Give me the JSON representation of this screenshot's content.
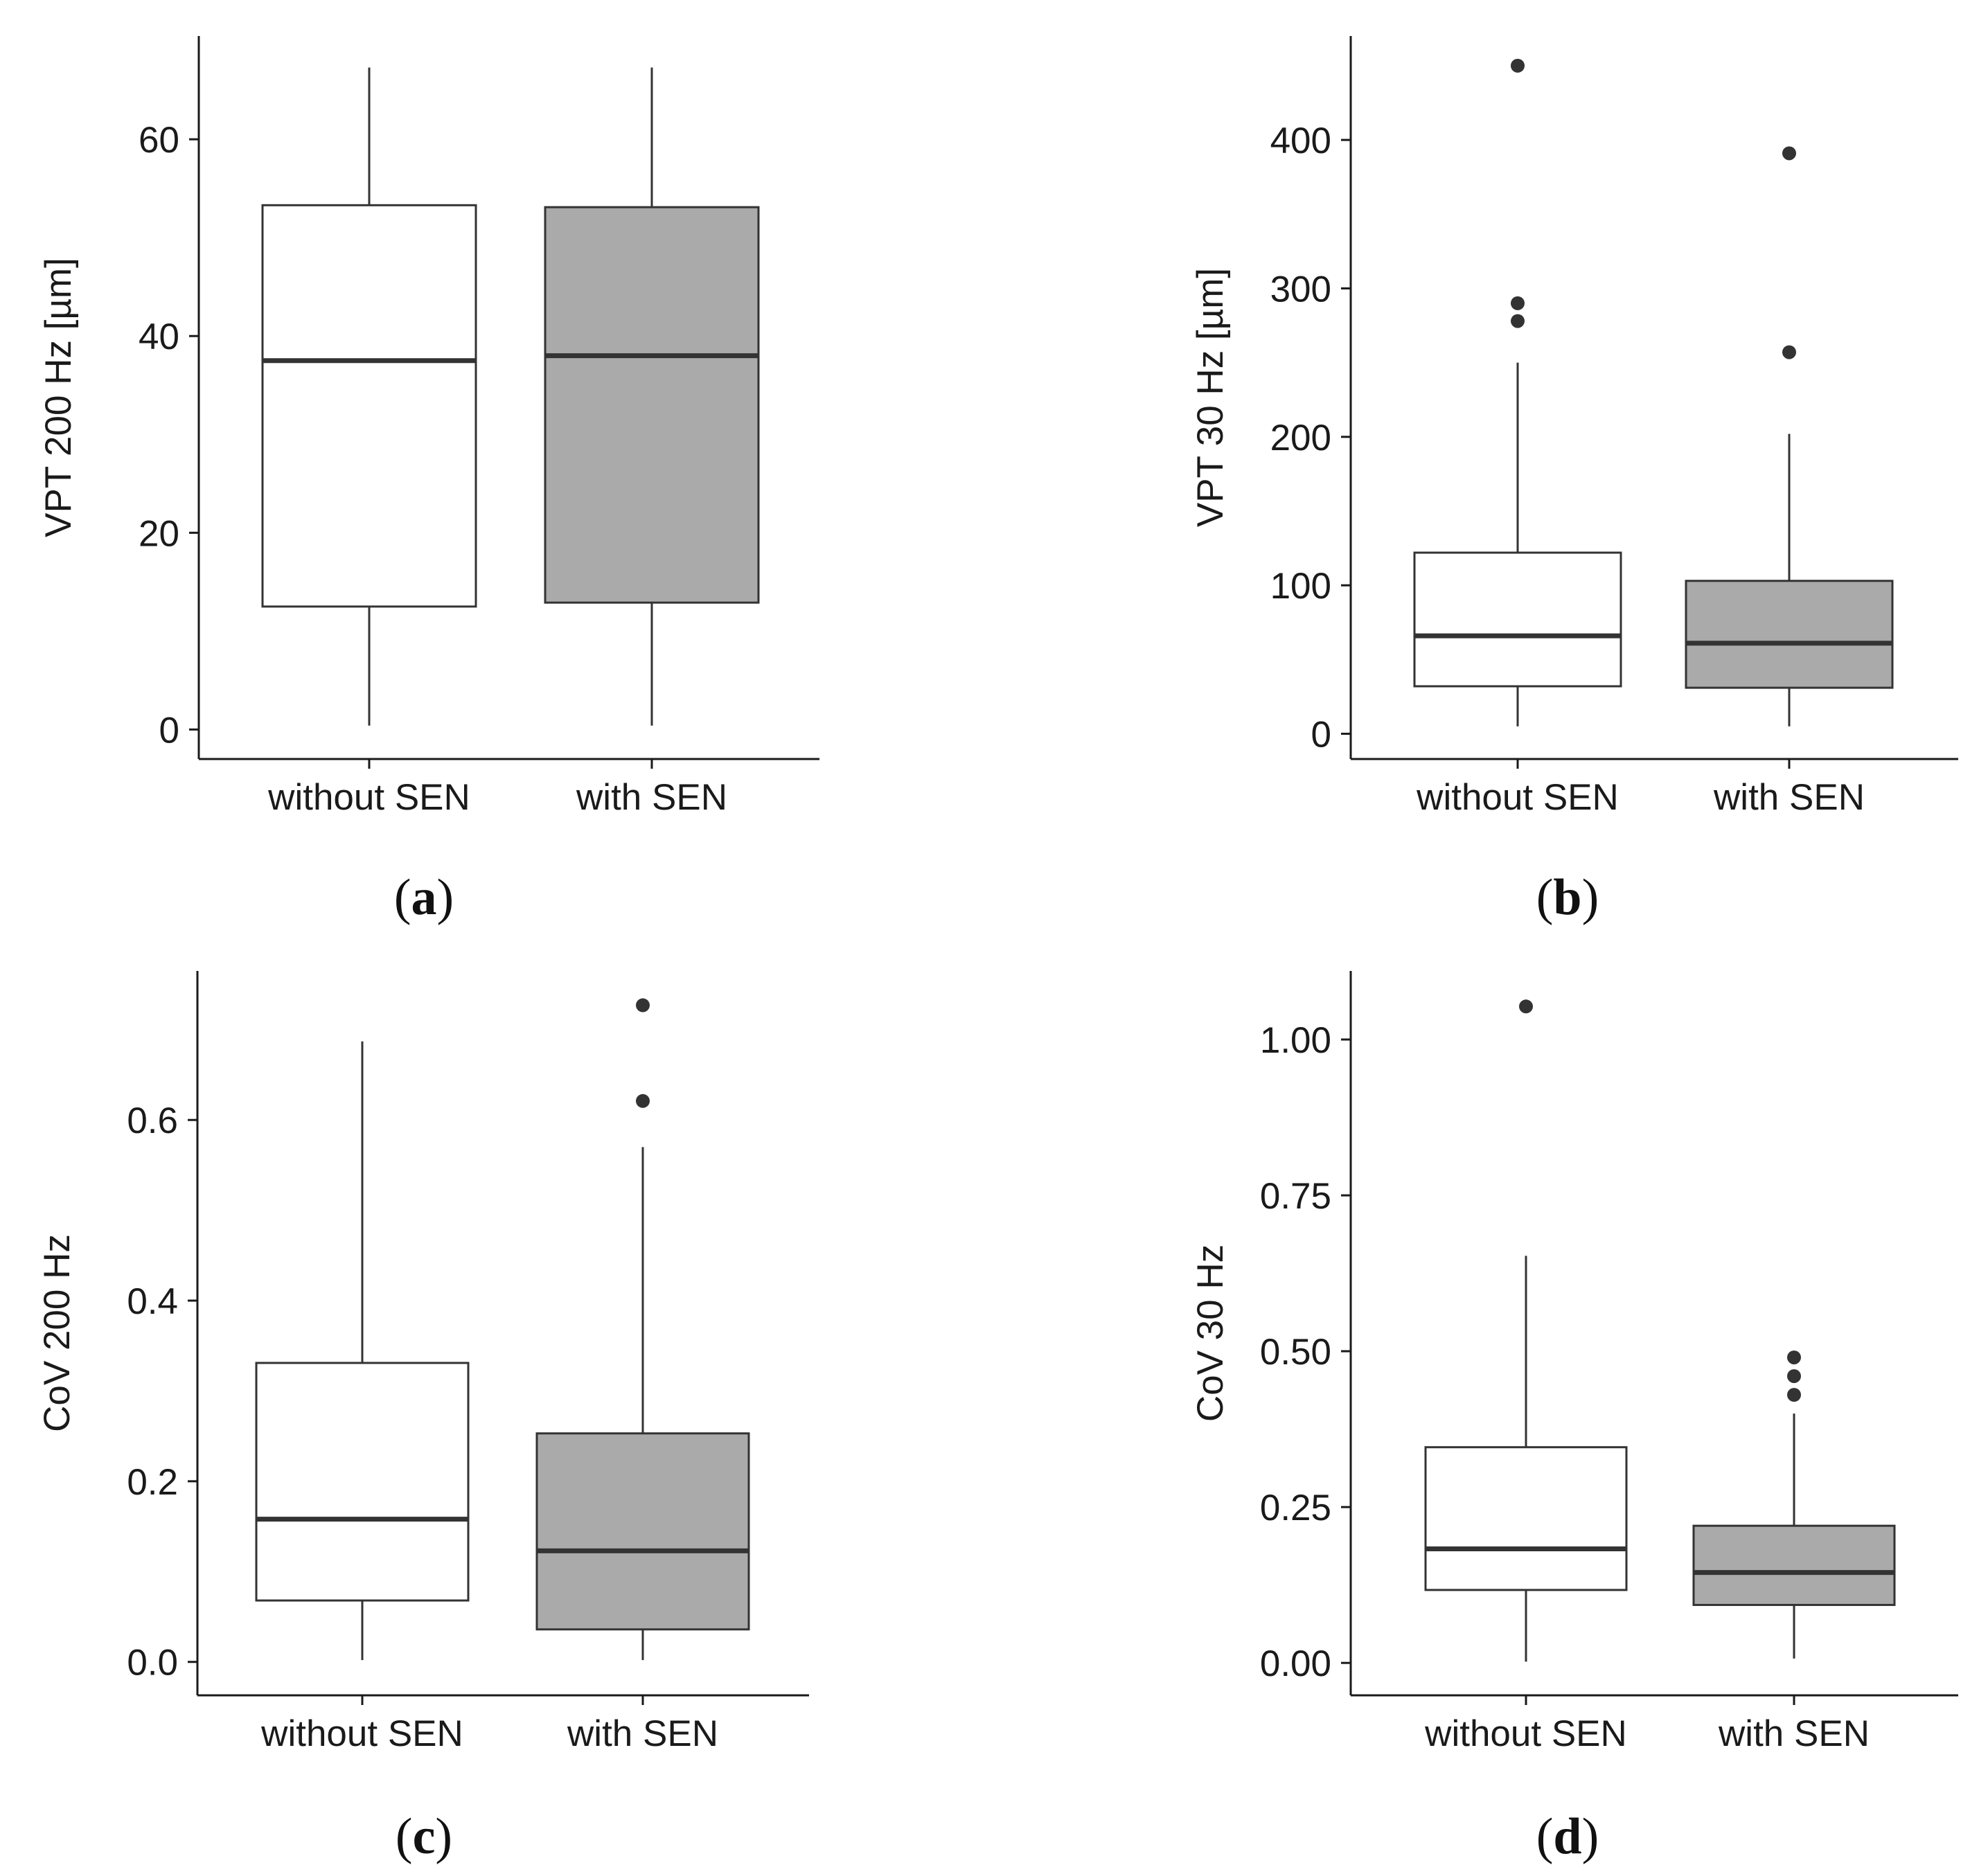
{
  "colors": {
    "without_fill": "#ffffff",
    "with_fill": "#aaaaaa",
    "stroke": "#333333",
    "axis": "#1a1a1a",
    "outlier": "#333333"
  },
  "chart_data": [
    {
      "type": "box",
      "panel": "(a)",
      "panel_letter": "a",
      "title": "",
      "xlabel": "",
      "ylabel": "VPT 200 Hz [µm]",
      "ylim": [
        -3,
        70.5
      ],
      "yticks": [
        0,
        20,
        40,
        60
      ],
      "ytick_labels": [
        "0",
        "20",
        "40",
        "60"
      ],
      "categories": [
        "without SEN",
        "with SEN"
      ],
      "boxes": [
        {
          "name": "without SEN",
          "whisker_low": 0.4,
          "q1": 12.5,
          "median": 37.5,
          "q3": 53.3,
          "whisker_high": 67.3,
          "outliers": []
        },
        {
          "name": "with SEN",
          "whisker_low": 0.4,
          "q1": 12.9,
          "median": 38.0,
          "q3": 53.1,
          "whisker_high": 67.3,
          "outliers": []
        }
      ]
    },
    {
      "type": "box",
      "panel": "(b)",
      "panel_letter": "b",
      "title": "",
      "xlabel": "",
      "ylabel": "VPT 30 Hz [µm]",
      "ylim": [
        -17,
        470
      ],
      "yticks": [
        0,
        100,
        200,
        300,
        400
      ],
      "ytick_labels": [
        "0",
        "100",
        "200",
        "300",
        "400"
      ],
      "categories": [
        "without SEN",
        "with SEN"
      ],
      "boxes": [
        {
          "name": "without SEN",
          "whisker_low": 5,
          "q1": 32,
          "median": 66,
          "q3": 122,
          "whisker_high": 250,
          "outliers": [
            278,
            290,
            450
          ]
        },
        {
          "name": "with SEN",
          "whisker_low": 5,
          "q1": 31,
          "median": 61,
          "q3": 103,
          "whisker_high": 202,
          "outliers": [
            257,
            391
          ]
        }
      ]
    },
    {
      "type": "box",
      "panel": "(c)",
      "panel_letter": "c",
      "title": "",
      "xlabel": "",
      "ylabel": "CoV 200 Hz",
      "ylim": [
        -0.037,
        0.765
      ],
      "yticks": [
        0,
        0.2,
        0.4,
        0.6
      ],
      "ytick_labels": [
        "0.0",
        "0.2",
        "0.4",
        "0.6"
      ],
      "categories": [
        "without SEN",
        "with SEN"
      ],
      "boxes": [
        {
          "name": "without SEN",
          "whisker_low": 0.002,
          "q1": 0.068,
          "median": 0.158,
          "q3": 0.331,
          "whisker_high": 0.687,
          "outliers": []
        },
        {
          "name": "with SEN",
          "whisker_low": 0.002,
          "q1": 0.036,
          "median": 0.123,
          "q3": 0.253,
          "whisker_high": 0.57,
          "outliers": [
            0.621,
            0.727
          ]
        }
      ]
    },
    {
      "type": "box",
      "panel": "(d)",
      "panel_letter": "d",
      "title": "",
      "xlabel": "",
      "ylabel": "CoV 30 Hz",
      "ylim": [
        -0.052,
        1.11
      ],
      "yticks": [
        0,
        0.25,
        0.5,
        0.75,
        1.0
      ],
      "ytick_labels": [
        "0.00",
        "0.25",
        "0.50",
        "0.75",
        "1.00"
      ],
      "categories": [
        "without SEN",
        "with SEN"
      ],
      "boxes": [
        {
          "name": "without SEN",
          "whisker_low": 0.002,
          "q1": 0.117,
          "median": 0.183,
          "q3": 0.346,
          "whisker_high": 0.653,
          "outliers": [
            1.053
          ]
        },
        {
          "name": "with SEN",
          "whisker_low": 0.007,
          "q1": 0.093,
          "median": 0.145,
          "q3": 0.22,
          "whisker_high": 0.4,
          "outliers": [
            0.43,
            0.46,
            0.49
          ]
        }
      ]
    }
  ]
}
